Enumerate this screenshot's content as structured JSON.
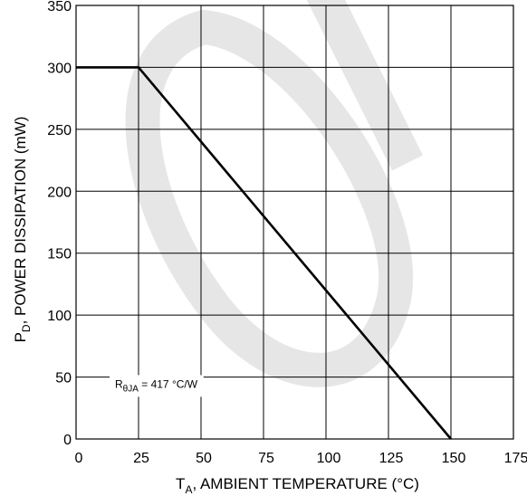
{
  "chart_data": {
    "type": "line",
    "x_label_parts": [
      "T",
      "A",
      ", AMBIENT TEMPERATURE (°C)"
    ],
    "y_label_parts": [
      "P",
      "D",
      ", POWER DISSIPATION (mW)"
    ],
    "xlim": [
      0,
      175
    ],
    "ylim": [
      0,
      350
    ],
    "x_ticks": [
      0,
      25,
      50,
      75,
      100,
      125,
      150,
      175
    ],
    "y_ticks": [
      0,
      50,
      100,
      150,
      200,
      250,
      300,
      350
    ],
    "x_tick_labels": [
      "0",
      "25",
      "50",
      "75",
      "100",
      "125",
      "150",
      "175"
    ],
    "y_tick_labels": [
      "0",
      "50",
      "100",
      "150",
      "200",
      "250",
      "300",
      "350"
    ],
    "grid": true,
    "series": [
      {
        "x": [
          0,
          25,
          150
        ],
        "y": [
          300,
          300,
          0
        ]
      }
    ],
    "annotation": {
      "parts": [
        "R",
        "θJA",
        " = 417 °C/W"
      ],
      "x": 50,
      "y": 45
    }
  }
}
